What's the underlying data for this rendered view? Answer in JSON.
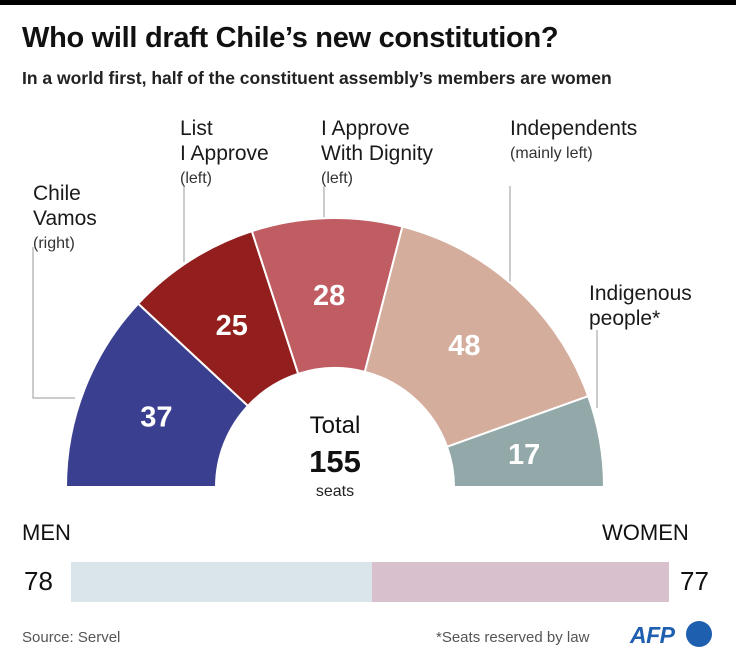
{
  "header": {
    "title": "Who will draft Chile’s new constitution?",
    "subtitle": "In a world first, half of the constituent assembly’s members are women"
  },
  "chart_data": [
    {
      "type": "pie",
      "subtype": "parliament-half-donut",
      "categories": [
        "Chile Vamos",
        "List I Approve",
        "I Approve With Dignity",
        "Independents",
        "Indigenous people*"
      ],
      "notes": [
        "(right)",
        "(left)",
        "(left)",
        "(mainly left)",
        ""
      ],
      "values": [
        37,
        25,
        28,
        48,
        17
      ],
      "colors": [
        "#3b3f8f",
        "#921f1d",
        "#bf5d62",
        "#d4ad9d",
        "#93a8a9"
      ],
      "total": {
        "label": "Total",
        "value": "155",
        "unit": "seats"
      }
    },
    {
      "type": "bar",
      "subtype": "stacked-horizontal",
      "categories": [
        "MEN",
        "WOMEN"
      ],
      "values": [
        78,
        77
      ],
      "colors": [
        "#d9e5ea",
        "#d8c1cc"
      ]
    }
  ],
  "labels": {
    "party_0_name": [
      "Chile",
      "Vamos"
    ],
    "party_1_name": [
      "List",
      "I Approve"
    ],
    "party_2_name": [
      "I Approve",
      "With Dignity"
    ],
    "party_3_name": [
      "Independents"
    ],
    "party_4_name": [
      "Indigenous",
      "people*"
    ]
  },
  "gender": {
    "men_label": "MEN",
    "women_label": "WOMEN",
    "men_count": "78",
    "women_count": "77"
  },
  "footer": {
    "source": "Source: Servel",
    "note": "*Seats reserved by law",
    "logo": "AFP"
  }
}
